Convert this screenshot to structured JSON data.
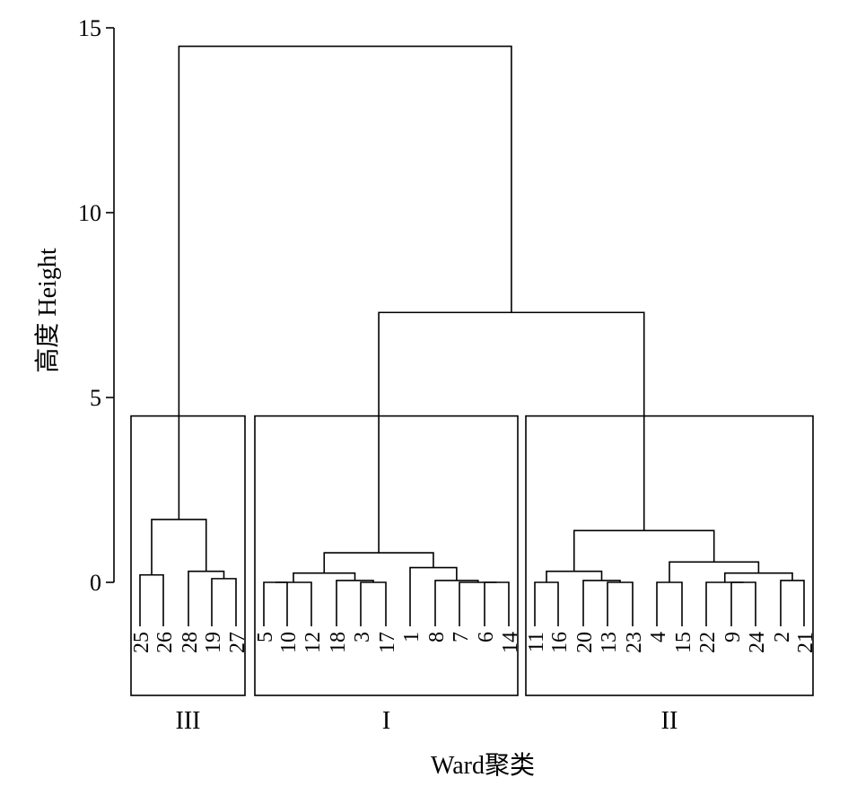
{
  "chart_data": {
    "type": "dendrogram",
    "title": "",
    "xlabel": "Ward聚类",
    "ylabel": "高度 Height",
    "ylim": [
      -3.1,
      15
    ],
    "yticks": [
      0,
      5,
      10,
      15
    ],
    "leaves": [
      "25",
      "26",
      "28",
      "19",
      "27",
      "5",
      "10",
      "12",
      "18",
      "3",
      "17",
      "1",
      "8",
      "7",
      "6",
      "14",
      "11",
      "16",
      "20",
      "13",
      "23",
      "4",
      "15",
      "22",
      "9",
      "24",
      "2",
      "21"
    ],
    "merges": [
      {
        "a": "L:25",
        "b": "L:26",
        "height": 0.2
      },
      {
        "a": "L:19",
        "b": "L:27",
        "height": 0.1
      },
      {
        "a": "L:28",
        "b": "M:1",
        "height": 0.3
      },
      {
        "a": "M:0",
        "b": "M:2",
        "height": 1.7
      },
      {
        "a": "L:5",
        "b": "L:10",
        "height": 0.0
      },
      {
        "a": "M:4",
        "b": "L:12",
        "height": 0.0
      },
      {
        "a": "L:3",
        "b": "L:17",
        "height": 0.0
      },
      {
        "a": "L:18",
        "b": "M:6",
        "height": 0.05
      },
      {
        "a": "M:5",
        "b": "M:7",
        "height": 0.25
      },
      {
        "a": "L:6",
        "b": "L:14",
        "height": 0.0
      },
      {
        "a": "L:7",
        "b": "M:9",
        "height": 0.0
      },
      {
        "a": "L:8",
        "b": "M:10",
        "height": 0.05
      },
      {
        "a": "L:1",
        "b": "M:11",
        "height": 0.4
      },
      {
        "a": "M:8",
        "b": "M:12",
        "height": 0.8
      },
      {
        "a": "L:11",
        "b": "L:16",
        "height": 0.0
      },
      {
        "a": "L:13",
        "b": "L:23",
        "height": 0.0
      },
      {
        "a": "L:20",
        "b": "M:15",
        "height": 0.05
      },
      {
        "a": "M:14",
        "b": "M:16",
        "height": 0.3
      },
      {
        "a": "L:4",
        "b": "L:15",
        "height": 0.0
      },
      {
        "a": "L:9",
        "b": "L:24",
        "height": 0.0
      },
      {
        "a": "L:22",
        "b": "M:19",
        "height": 0.0
      },
      {
        "a": "L:2",
        "b": "L:21",
        "height": 0.05
      },
      {
        "a": "M:20",
        "b": "M:21",
        "height": 0.25
      },
      {
        "a": "M:18",
        "b": "M:22",
        "height": 0.55
      },
      {
        "a": "M:17",
        "b": "M:23",
        "height": 1.4
      },
      {
        "a": "M:13",
        "b": "M:24",
        "height": 7.3
      },
      {
        "a": "M:3",
        "b": "M:25",
        "height": 14.5
      }
    ],
    "groups": [
      {
        "label": "III",
        "first_leaf": 0,
        "last_leaf": 4
      },
      {
        "label": "I",
        "first_leaf": 5,
        "last_leaf": 15
      },
      {
        "label": "II",
        "first_leaf": 16,
        "last_leaf": 27
      }
    ],
    "group_box_top": 4.5,
    "grid": false,
    "legend": "none"
  }
}
